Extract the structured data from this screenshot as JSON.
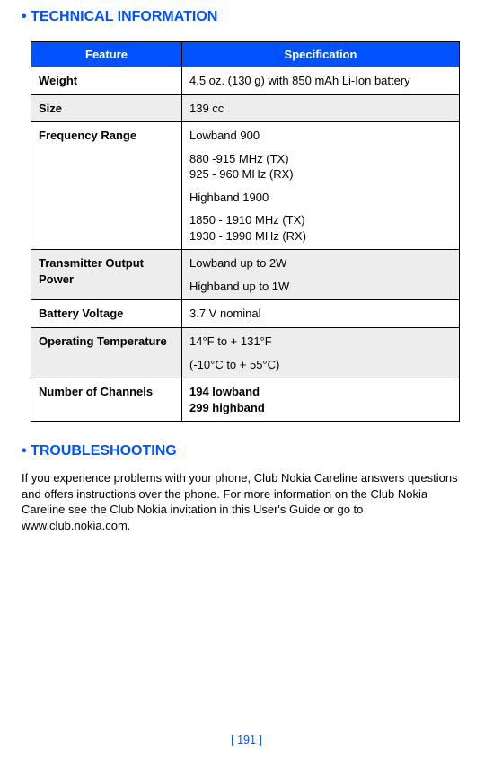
{
  "heading_tech": "• TECHNICAL INFORMATION",
  "heading_trouble": "• TROUBLESHOOTING",
  "table": {
    "header_feature": "Feature",
    "header_spec": "Specification",
    "rows": {
      "weight": {
        "label": "Weight",
        "value": "4.5 oz. (130 g) with 850 mAh Li-Ion battery"
      },
      "size": {
        "label": "Size",
        "value": "139 cc"
      },
      "freq": {
        "label": "Frequency Range",
        "p1": "Lowband 900",
        "p2a": "880 -915 MHz (TX)",
        "p2b": "925 - 960 MHz (RX)",
        "p3": "Highband 1900",
        "p4a": "1850 - 1910 MHz (TX)",
        "p4b": "1930 - 1990 MHz (RX)"
      },
      "power": {
        "label": "Transmitter Output Power",
        "p1": "Lowband up to 2W",
        "p2": "Highband up to 1W"
      },
      "voltage": {
        "label": "Battery Voltage",
        "value": "3.7 V nominal"
      },
      "temp": {
        "label": "Operating Temperature",
        "p1": "14°F to + 131°F",
        "p2": "(-10°C to + 55°C)"
      },
      "channels": {
        "label": "Number of Channels",
        "p1": "194 lowband",
        "p2": "299 highband"
      }
    }
  },
  "troubleshooting_body": "If you experience problems with your phone, Club Nokia Careline answers questions and offers instructions over the phone. For more information on the Club Nokia Careline see the Club Nokia invitation in this User's Guide or go to www.club.nokia.com.",
  "page_number": "[ 191 ]",
  "colors": {
    "accent": "#0052ff",
    "shade": "#ededed",
    "border": "#000000",
    "text": "#000000",
    "background": "#ffffff"
  }
}
